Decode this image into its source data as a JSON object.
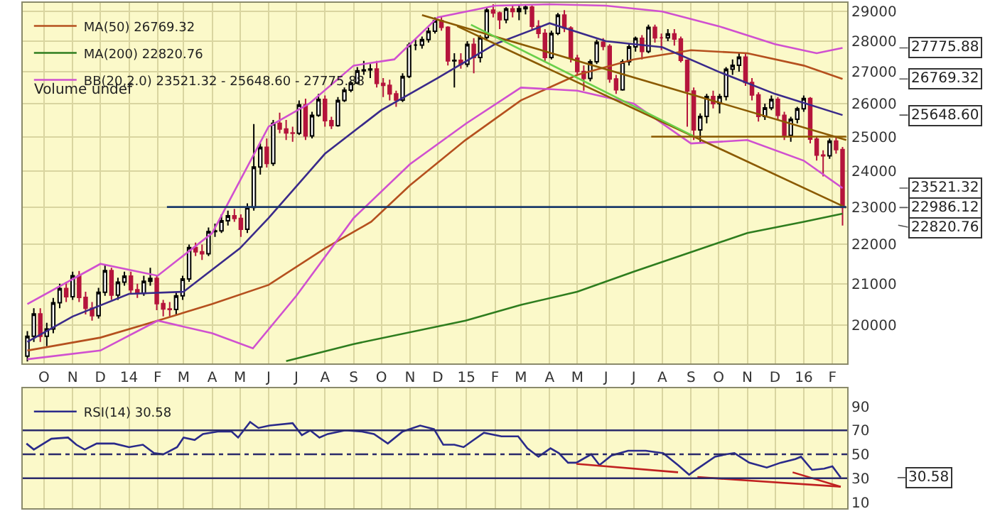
{
  "chart_data": [
    {
      "type": "candlestick",
      "log": "y",
      "grid": true,
      "legend": "top left",
      "marker": "none",
      "xlim": [
        "2013-09-08",
        "2016-02-17"
      ],
      "ylim": [
        19100,
        29300
      ],
      "yticks": [
        20000,
        21000,
        22000,
        23000,
        24000,
        25000,
        26000,
        27000,
        28000,
        29000
      ],
      "xticks": [
        {
          "value": "2013-10-01",
          "label": "O"
        },
        {
          "value": "2013-11-01",
          "label": "N"
        },
        {
          "value": "2013-12-01",
          "label": "D"
        },
        {
          "value": "2014-01-01",
          "label": "14"
        },
        {
          "value": "2014-02-01",
          "label": "F"
        },
        {
          "value": "2014-03-01",
          "label": "M"
        },
        {
          "value": "2014-04-01",
          "label": "A"
        },
        {
          "value": "2014-05-01",
          "label": "M"
        },
        {
          "value": "2014-06-01",
          "label": "J"
        },
        {
          "value": "2014-07-01",
          "label": "J"
        },
        {
          "value": "2014-08-01",
          "label": "A"
        },
        {
          "value": "2014-09-01",
          "label": "S"
        },
        {
          "value": "2014-10-01",
          "label": "O"
        },
        {
          "value": "2014-11-01",
          "label": "N"
        },
        {
          "value": "2014-12-01",
          "label": "D"
        },
        {
          "value": "2015-01-01",
          "label": "15"
        },
        {
          "value": "2015-02-01",
          "label": "F"
        },
        {
          "value": "2015-03-01",
          "label": "M"
        },
        {
          "value": "2015-04-01",
          "label": "A"
        },
        {
          "value": "2015-05-01",
          "label": "M"
        },
        {
          "value": "2015-06-01",
          "label": "J"
        },
        {
          "value": "2015-07-01",
          "label": "J"
        },
        {
          "value": "2015-08-01",
          "label": "A"
        },
        {
          "value": "2015-09-01",
          "label": "S"
        },
        {
          "value": "2015-10-01",
          "label": "O"
        },
        {
          "value": "2015-11-01",
          "label": "N"
        },
        {
          "value": "2015-12-01",
          "label": "D"
        },
        {
          "value": "2016-01-01",
          "label": "16"
        },
        {
          "value": "2016-02-01",
          "label": "F"
        }
      ],
      "x": [
        "2013-09-13",
        "2013-09-20",
        "2013-09-27",
        "2013-10-04",
        "2013-10-11",
        "2013-10-18",
        "2013-10-25",
        "2013-11-01",
        "2013-11-08",
        "2013-11-15",
        "2013-11-22",
        "2013-11-29",
        "2013-12-06",
        "2013-12-13",
        "2013-12-20",
        "2013-12-27",
        "2014-01-03",
        "2014-01-10",
        "2014-01-17",
        "2014-01-24",
        "2014-01-31",
        "2014-02-07",
        "2014-02-14",
        "2014-02-21",
        "2014-02-28",
        "2014-03-07",
        "2014-03-14",
        "2014-03-21",
        "2014-03-28",
        "2014-04-04",
        "2014-04-11",
        "2014-04-18",
        "2014-04-25",
        "2014-05-02",
        "2014-05-09",
        "2014-05-16",
        "2014-05-23",
        "2014-05-30",
        "2014-06-06",
        "2014-06-13",
        "2014-06-20",
        "2014-06-27",
        "2014-07-04",
        "2014-07-11",
        "2014-07-18",
        "2014-07-25",
        "2014-08-01",
        "2014-08-08",
        "2014-08-15",
        "2014-08-22",
        "2014-08-29",
        "2014-09-05",
        "2014-09-12",
        "2014-09-19",
        "2014-09-26",
        "2014-10-03",
        "2014-10-10",
        "2014-10-17",
        "2014-10-24",
        "2014-10-31",
        "2014-11-07",
        "2014-11-14",
        "2014-11-21",
        "2014-11-28",
        "2014-12-05",
        "2014-12-12",
        "2014-12-19",
        "2014-12-26",
        "2015-01-02",
        "2015-01-09",
        "2015-01-16",
        "2015-01-23",
        "2015-01-30",
        "2015-02-06",
        "2015-02-13",
        "2015-02-20",
        "2015-02-27",
        "2015-03-06",
        "2015-03-13",
        "2015-03-20",
        "2015-03-27",
        "2015-04-03",
        "2015-04-10",
        "2015-04-17",
        "2015-04-24",
        "2015-05-01",
        "2015-05-08",
        "2015-05-15",
        "2015-05-22",
        "2015-05-29",
        "2015-06-05",
        "2015-06-12",
        "2015-06-19",
        "2015-06-26",
        "2015-07-03",
        "2015-07-10",
        "2015-07-17",
        "2015-07-24",
        "2015-07-31",
        "2015-08-07",
        "2015-08-14",
        "2015-08-21",
        "2015-08-28",
        "2015-09-04",
        "2015-09-11",
        "2015-09-18",
        "2015-09-25",
        "2015-10-02",
        "2015-10-09",
        "2015-10-16",
        "2015-10-23",
        "2015-10-30",
        "2015-11-06",
        "2015-11-13",
        "2015-11-20",
        "2015-11-27",
        "2015-12-04",
        "2015-12-11",
        "2015-12-18",
        "2015-12-25",
        "2016-01-01",
        "2016-01-08",
        "2016-01-15",
        "2016-01-22",
        "2016-01-29",
        "2016-02-05",
        "2016-02-12"
      ],
      "ohlc": [
        [
          19270,
          19850,
          19150,
          19730
        ],
        [
          19730,
          20400,
          19600,
          20260
        ],
        [
          20260,
          20400,
          19600,
          19730
        ],
        [
          19730,
          20050,
          19500,
          19900
        ],
        [
          19900,
          20650,
          19800,
          20530
        ],
        [
          20530,
          21000,
          20400,
          20880
        ],
        [
          20880,
          21050,
          20550,
          20680
        ],
        [
          20680,
          21300,
          20600,
          21200
        ],
        [
          21200,
          21320,
          20550,
          20660
        ],
        [
          20660,
          20800,
          20250,
          20400
        ],
        [
          20400,
          20550,
          20100,
          20220
        ],
        [
          20220,
          20900,
          20150,
          20790
        ],
        [
          20790,
          21480,
          20700,
          21330
        ],
        [
          21330,
          21400,
          20600,
          20720
        ],
        [
          20720,
          21150,
          20600,
          21040
        ],
        [
          21040,
          21300,
          20950,
          21190
        ],
        [
          21190,
          21300,
          20750,
          20850
        ],
        [
          20850,
          21000,
          20650,
          20760
        ],
        [
          20760,
          21200,
          20700,
          21060
        ],
        [
          21060,
          21400,
          20950,
          21130
        ],
        [
          21130,
          21200,
          20350,
          20510
        ],
        [
          20510,
          20600,
          20200,
          20380
        ],
        [
          20380,
          20550,
          20200,
          20370
        ],
        [
          20370,
          20800,
          20250,
          20700
        ],
        [
          20700,
          21200,
          20600,
          21120
        ],
        [
          21120,
          22000,
          21050,
          21920
        ],
        [
          21920,
          22050,
          21700,
          21810
        ],
        [
          21810,
          22000,
          21600,
          21760
        ],
        [
          21760,
          22450,
          21700,
          22340
        ],
        [
          22340,
          22550,
          22200,
          22360
        ],
        [
          22360,
          22800,
          22300,
          22630
        ],
        [
          22630,
          22900,
          22500,
          22760
        ],
        [
          22760,
          22950,
          22600,
          22690
        ],
        [
          22690,
          22800,
          22200,
          22400
        ],
        [
          22400,
          23100,
          22300,
          22990
        ],
        [
          22990,
          25380,
          22900,
          24120
        ],
        [
          24120,
          24800,
          23900,
          24690
        ],
        [
          24690,
          24950,
          24100,
          24220
        ],
        [
          24220,
          25500,
          24150,
          25400
        ],
        [
          25400,
          25720,
          25100,
          25230
        ],
        [
          25230,
          25500,
          24900,
          25110
        ],
        [
          25110,
          25300,
          24850,
          25100
        ],
        [
          25100,
          26100,
          25050,
          25960
        ],
        [
          25960,
          26150,
          24900,
          25020
        ],
        [
          25020,
          25750,
          24950,
          25640
        ],
        [
          25640,
          26300,
          25600,
          26130
        ],
        [
          26130,
          26250,
          25300,
          25480
        ],
        [
          25480,
          25600,
          25230,
          25330
        ],
        [
          25330,
          26200,
          25300,
          26100
        ],
        [
          26100,
          26500,
          26050,
          26420
        ],
        [
          26420,
          26700,
          26350,
          26640
        ],
        [
          26640,
          27150,
          26600,
          27030
        ],
        [
          27030,
          27350,
          26900,
          27060
        ],
        [
          27060,
          27250,
          26800,
          27090
        ],
        [
          27090,
          27350,
          26500,
          26630
        ],
        [
          26630,
          26800,
          26200,
          26570
        ],
        [
          26570,
          26750,
          26100,
          26300
        ],
        [
          26300,
          26400,
          25900,
          26110
        ],
        [
          26110,
          26950,
          26050,
          26850
        ],
        [
          26850,
          27950,
          26800,
          27870
        ],
        [
          27870,
          28050,
          27700,
          27870
        ],
        [
          27870,
          28150,
          27750,
          28050
        ],
        [
          28050,
          28450,
          27950,
          28330
        ],
        [
          28330,
          28800,
          28250,
          28690
        ],
        [
          28690,
          28820,
          28350,
          28460
        ],
        [
          28460,
          28500,
          27200,
          27350
        ],
        [
          27350,
          27600,
          26500,
          27370
        ],
        [
          27370,
          27600,
          27100,
          27240
        ],
        [
          27240,
          28000,
          27150,
          27890
        ],
        [
          27890,
          28100,
          26950,
          27460
        ],
        [
          27460,
          28200,
          27300,
          28120
        ],
        [
          28120,
          29150,
          28050,
          29050
        ],
        [
          29050,
          29250,
          28800,
          28950
        ],
        [
          28950,
          29000,
          28400,
          28720
        ],
        [
          28720,
          29150,
          28600,
          29090
        ],
        [
          29090,
          29200,
          28800,
          29000
        ],
        [
          29000,
          29200,
          28700,
          29100
        ],
        [
          29100,
          29250,
          28900,
          29150
        ],
        [
          29150,
          29200,
          28400,
          28500
        ],
        [
          28500,
          28700,
          28100,
          28260
        ],
        [
          28260,
          28400,
          27300,
          27460
        ],
        [
          27460,
          28350,
          27400,
          28260
        ],
        [
          28260,
          28950,
          28200,
          28880
        ],
        [
          28880,
          29050,
          28300,
          28440
        ],
        [
          28440,
          28500,
          27300,
          27440
        ],
        [
          27440,
          27550,
          26900,
          27010
        ],
        [
          27010,
          27200,
          26400,
          26790
        ],
        [
          26790,
          27400,
          26700,
          27320
        ],
        [
          27320,
          28050,
          27250,
          27960
        ],
        [
          27960,
          28100,
          27700,
          27830
        ],
        [
          27830,
          27900,
          26650,
          26770
        ],
        [
          26770,
          26900,
          26300,
          26430
        ],
        [
          26430,
          27400,
          26400,
          27320
        ],
        [
          27320,
          27900,
          27200,
          27810
        ],
        [
          27810,
          28150,
          27650,
          28090
        ],
        [
          28090,
          28200,
          27400,
          27660
        ],
        [
          27660,
          28550,
          27600,
          28460
        ],
        [
          28460,
          28550,
          27950,
          28110
        ],
        [
          28110,
          28250,
          27700,
          28110
        ],
        [
          28110,
          28400,
          28000,
          28240
        ],
        [
          28240,
          28400,
          27850,
          28070
        ],
        [
          28070,
          28150,
          27300,
          27370
        ],
        [
          27370,
          27400,
          25300,
          26390
        ],
        [
          26390,
          26500,
          24900,
          25200
        ],
        [
          25200,
          25700,
          24850,
          25610
        ],
        [
          25610,
          26300,
          25400,
          26220
        ],
        [
          26220,
          26400,
          25850,
          26000
        ],
        [
          26000,
          26300,
          25700,
          26220
        ],
        [
          26220,
          27150,
          26100,
          27080
        ],
        [
          27080,
          27400,
          26900,
          27210
        ],
        [
          27210,
          27600,
          27000,
          27470
        ],
        [
          27470,
          27600,
          26550,
          26660
        ],
        [
          26660,
          26800,
          26100,
          26270
        ],
        [
          26270,
          26350,
          25450,
          25610
        ],
        [
          25610,
          26000,
          25500,
          25870
        ],
        [
          25870,
          26250,
          25800,
          26130
        ],
        [
          26130,
          26200,
          25500,
          25640
        ],
        [
          25640,
          25750,
          24900,
          25040
        ],
        [
          25040,
          25600,
          24850,
          25520
        ],
        [
          25520,
          25900,
          25400,
          25840
        ],
        [
          25840,
          26250,
          25750,
          26160
        ],
        [
          26160,
          26200,
          24800,
          24930
        ],
        [
          24930,
          25000,
          24300,
          24460
        ],
        [
          24460,
          24600,
          23850,
          24440
        ],
        [
          24440,
          24950,
          24350,
          24870
        ],
        [
          24870,
          25000,
          24500,
          24620
        ],
        [
          24620,
          24700,
          22500,
          22986.12
        ]
      ],
      "series": [
        {
          "name": "MA(50) 26769.32",
          "color": "#b5501e",
          "type": "line",
          "x": [
            "2013-09-13",
            "2013-12-01",
            "2014-02-01",
            "2014-04-01",
            "2014-06-01",
            "2014-08-01",
            "2014-09-20",
            "2014-11-01",
            "2014-12-31",
            "2015-03-01",
            "2015-05-01",
            "2015-07-01",
            "2015-09-01",
            "2015-11-01",
            "2016-01-01",
            "2016-02-12"
          ],
          "values": [
            19400,
            19700,
            20100,
            20500,
            20970,
            21900,
            22600,
            23600,
            24900,
            26100,
            26900,
            27400,
            27700,
            27600,
            27200,
            26769.32
          ]
        },
        {
          "name": "MA(200) 22820.76",
          "color": "#2e7d1e",
          "type": "line",
          "x": [
            "2014-06-20",
            "2014-09-01",
            "2014-12-31",
            "2015-03-01",
            "2015-05-01",
            "2015-07-01",
            "2015-09-01",
            "2015-11-01",
            "2016-01-01",
            "2016-02-12"
          ],
          "values": [
            19160,
            19550,
            20100,
            20480,
            20800,
            21300,
            21800,
            22300,
            22600,
            22820.76
          ]
        },
        {
          "name": "BB(20,2.0) 23521.32 - 25648.60 - 27775.88",
          "color": "#d050d0",
          "type": "line",
          "x": [
            "2013-09-13",
            "2013-12-01",
            "2014-02-01",
            "2014-04-01",
            "2014-06-01",
            "2014-07-15",
            "2014-09-01",
            "2014-10-15",
            "2014-12-01",
            "2015-02-01",
            "2015-04-01",
            "2015-06-01",
            "2015-08-01",
            "2015-10-01",
            "2015-12-01",
            "2016-01-15",
            "2016-02-12"
          ],
          "values": [
            20500,
            21500,
            21200,
            22300,
            25300,
            26000,
            27200,
            27400,
            28800,
            29200,
            29250,
            29200,
            29000,
            28500,
            27900,
            27600,
            27775.88
          ]
        },
        {
          "color": "#d050d0",
          "type": "line",
          "x": [
            "2013-09-13",
            "2013-12-01",
            "2014-02-01",
            "2014-04-01",
            "2014-05-15",
            "2014-07-01",
            "2014-09-01",
            "2014-11-01",
            "2015-01-01",
            "2015-03-01",
            "2015-05-01",
            "2015-07-01",
            "2015-09-01",
            "2015-11-01",
            "2016-01-01",
            "2016-02-12"
          ],
          "values": [
            19200,
            19400,
            20100,
            19800,
            19450,
            20700,
            22700,
            24200,
            25400,
            26500,
            26400,
            26000,
            24800,
            24900,
            24300,
            23521.32
          ]
        },
        {
          "color": "#3a2a8a",
          "type": "line",
          "x": [
            "2013-09-13",
            "2013-11-01",
            "2014-01-01",
            "2014-03-01",
            "2014-05-01",
            "2014-06-01",
            "2014-08-01",
            "2014-10-01",
            "2014-12-01",
            "2015-02-01",
            "2015-04-01",
            "2015-06-01",
            "2015-08-01",
            "2015-10-01",
            "2015-12-01",
            "2016-02-12"
          ],
          "values": [
            19600,
            20200,
            20750,
            20800,
            21900,
            22700,
            24500,
            25800,
            26800,
            27900,
            28600,
            28000,
            27800,
            27000,
            26300,
            25648.6
          ]
        },
        {
          "color": "#8b5a00",
          "type": "line",
          "x": [
            "2014-11-14",
            "2016-02-16"
          ],
          "values": [
            28880,
            24900
          ]
        },
        {
          "color": "#8b5a00",
          "type": "line",
          "x": [
            "2014-12-22",
            "2016-02-16"
          ],
          "values": [
            28500,
            22980
          ]
        },
        {
          "color": "#6ad04a",
          "type": "line",
          "x": [
            "2015-01-06",
            "2015-09-05"
          ],
          "values": [
            28550,
            25000
          ]
        },
        {
          "color": "#8b5a00",
          "type": "line",
          "x": [
            "2015-07-20",
            "2016-02-16"
          ],
          "values": [
            25000,
            25000
          ]
        },
        {
          "color": "#1a3a6a",
          "type": "line",
          "x": [
            "2014-02-11",
            "2016-02-16"
          ],
          "values": [
            23000,
            23000
          ]
        }
      ],
      "annotations": [
        "Volume undef",
        {
          "text": "27775.88",
          "x": "2016-02-12",
          "y": 27775.88
        },
        {
          "text": "26769.32",
          "x": "2016-02-12",
          "y": 26769.32
        },
        {
          "text": "25648.60",
          "x": "2016-02-12",
          "y": 25648.6
        },
        {
          "text": "23521.32",
          "x": "2016-02-12",
          "y": 23521.32
        },
        {
          "text": "22986.12",
          "x": "2016-02-12",
          "y": 22986.12
        },
        {
          "text": "22820.76",
          "x": "2016-02-12",
          "y": 22820.76
        }
      ]
    },
    {
      "type": "line",
      "grid": "x",
      "legend": "top left",
      "marker": "none",
      "tick_labels": "y",
      "xlim": [
        "2013-09-08",
        "2016-02-17"
      ],
      "ylim": [
        5,
        105
      ],
      "yticks": [
        10,
        30,
        50,
        70,
        90
      ],
      "xticks": [
        {
          "value": "2013-10-01",
          "label": null
        },
        {
          "value": "2013-11-01",
          "label": null
        },
        {
          "value": "2013-12-01",
          "label": null
        },
        {
          "value": "2014-01-01",
          "label": null
        },
        {
          "value": "2014-02-01",
          "label": null
        },
        {
          "value": "2014-03-01",
          "label": null
        },
        {
          "value": "2014-04-01",
          "label": null
        },
        {
          "value": "2014-05-01",
          "label": null
        },
        {
          "value": "2014-06-01",
          "label": null
        },
        {
          "value": "2014-07-01",
          "label": null
        },
        {
          "value": "2014-08-01",
          "label": null
        },
        {
          "value": "2014-09-01",
          "label": null
        },
        {
          "value": "2014-10-01",
          "label": null
        },
        {
          "value": "2014-11-01",
          "label": null
        },
        {
          "value": "2014-12-01",
          "label": null
        },
        {
          "value": "2015-01-01",
          "label": null
        },
        {
          "value": "2015-02-01",
          "label": null
        },
        {
          "value": "2015-03-01",
          "label": null
        },
        {
          "value": "2015-04-01",
          "label": null
        },
        {
          "value": "2015-05-01",
          "label": null
        },
        {
          "value": "2015-06-01",
          "label": null
        },
        {
          "value": "2015-07-01",
          "label": null
        },
        {
          "value": "2015-08-01",
          "label": null
        },
        {
          "value": "2015-09-01",
          "label": null
        },
        {
          "value": "2015-10-01",
          "label": null
        },
        {
          "value": "2015-11-01",
          "label": null
        },
        {
          "value": "2015-12-01",
          "label": null
        },
        {
          "value": "2016-01-01",
          "label": null
        },
        {
          "value": "2016-02-01",
          "label": null
        }
      ],
      "series": [
        {
          "name": "RSI(14) 30.58",
          "color": "#2a2a8a",
          "x": [
            "2013-09-12",
            "2013-09-20",
            "2013-10-09",
            "2013-10-27",
            "2013-11-05",
            "2013-11-14",
            "2013-11-27",
            "2013-12-16",
            "2014-01-01",
            "2014-01-16",
            "2014-01-28",
            "2014-02-07",
            "2014-02-22",
            "2014-03-01",
            "2014-03-13",
            "2014-03-22",
            "2014-04-07",
            "2014-04-22",
            "2014-04-29",
            "2014-05-12",
            "2014-05-21",
            "2014-06-02",
            "2014-06-27",
            "2014-07-07",
            "2014-07-16",
            "2014-07-26",
            "2014-08-04",
            "2014-08-23",
            "2014-09-10",
            "2014-09-23",
            "2014-10-08",
            "2014-10-24",
            "2014-11-12",
            "2014-11-27",
            "2014-12-07",
            "2014-12-19",
            "2014-12-29",
            "2015-01-07",
            "2015-01-20",
            "2015-02-08",
            "2015-02-26",
            "2015-03-08",
            "2015-03-20",
            "2015-04-02",
            "2015-04-11",
            "2015-04-21",
            "2015-04-30",
            "2015-05-16",
            "2015-05-25",
            "2015-06-07",
            "2015-06-25",
            "2015-07-14",
            "2015-08-02",
            "2015-08-18",
            "2015-08-30",
            "2015-09-08",
            "2015-09-27",
            "2015-10-09",
            "2015-10-18",
            "2015-11-03",
            "2015-11-22",
            "2015-12-07",
            "2015-12-23",
            "2015-12-29",
            "2016-01-10",
            "2016-01-23",
            "2016-02-01",
            "2016-02-10"
          ],
          "values": [
            59,
            54,
            63,
            64,
            58,
            54,
            59,
            59,
            56,
            58,
            51,
            50,
            56,
            64,
            62,
            67,
            69,
            69,
            64,
            77,
            72,
            74,
            76,
            66,
            70,
            64,
            67,
            70,
            69,
            67,
            59,
            69,
            74,
            71,
            58,
            58,
            56,
            61,
            68,
            65,
            65,
            55,
            48,
            55,
            51,
            43,
            43,
            50,
            41,
            49,
            53,
            53,
            51,
            41,
            33,
            38,
            48,
            50,
            51,
            43,
            39,
            43,
            46,
            48,
            37,
            38,
            40,
            30.58
          ]
        },
        {
          "color": "#c02020",
          "x": [
            "2015-04-30",
            "2015-08-18"
          ],
          "values": [
            42,
            35
          ]
        },
        {
          "color": "#c02020",
          "x": [
            "2015-09-08",
            "2016-02-10"
          ],
          "values": [
            31,
            23
          ]
        },
        {
          "color": "#c02020",
          "x": [
            "2015-12-20",
            "2016-02-10"
          ],
          "values": [
            35,
            23
          ]
        }
      ],
      "ref_lines": [
        {
          "axis": "y",
          "value": 70,
          "color": "#2a2a6a"
        },
        {
          "axis": "y",
          "value": 30,
          "color": "#2a2a6a"
        },
        {
          "axis": "y",
          "value": 50,
          "color": "#2a2a6a",
          "line_style": "dashed"
        }
      ],
      "annotations": [
        {
          "text": "30.58",
          "x": "2016-02-10",
          "y": 30.58
        }
      ]
    }
  ]
}
